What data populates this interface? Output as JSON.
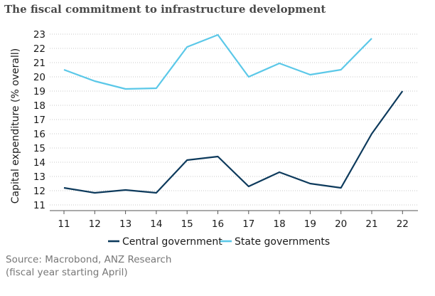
{
  "title": "The fiscal commitment to infrastructure development",
  "source": {
    "line1": "Source: Macrobond, ANZ Research",
    "line2": "(fiscal year starting April)"
  },
  "colors": {
    "central": "#0d3a5c",
    "state": "#5bc8e8",
    "grid": "#c8c8c8",
    "axis": "#555555"
  },
  "chart_data": {
    "type": "line",
    "x": [
      11,
      12,
      13,
      14,
      15,
      16,
      17,
      18,
      19,
      20,
      21,
      22
    ],
    "ylabel": "Capital expenditure (% overall)",
    "xlabel": "",
    "ylim": [
      10.6,
      23.3
    ],
    "yticks": [
      11,
      12,
      13,
      14,
      15,
      16,
      17,
      18,
      19,
      20,
      21,
      22,
      23
    ],
    "grid": true,
    "legend": "bottom",
    "series": [
      {
        "name": "Central government",
        "color": "#0d3a5c",
        "values": [
          12.2,
          11.85,
          12.05,
          11.85,
          14.15,
          14.4,
          12.3,
          13.3,
          12.5,
          12.2,
          16.0,
          19.0
        ]
      },
      {
        "name": "State governments",
        "color": "#5bc8e8",
        "values": [
          20.5,
          19.7,
          19.15,
          19.2,
          22.1,
          22.95,
          20.0,
          20.95,
          20.15,
          20.5,
          22.7,
          null
        ]
      }
    ]
  }
}
